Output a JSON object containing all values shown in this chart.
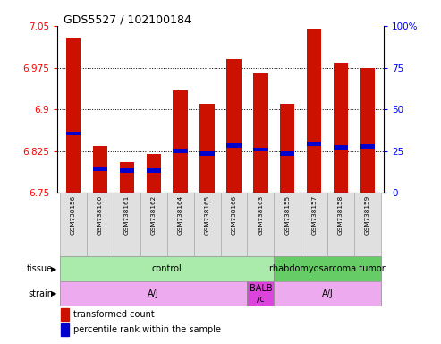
{
  "title": "GDS5527 / 102100184",
  "samples": [
    "GSM738156",
    "GSM738160",
    "GSM738161",
    "GSM738162",
    "GSM738164",
    "GSM738165",
    "GSM738166",
    "GSM738163",
    "GSM738155",
    "GSM738157",
    "GSM738158",
    "GSM738159"
  ],
  "bar_tops": [
    7.03,
    6.835,
    6.805,
    6.82,
    6.935,
    6.91,
    6.99,
    6.965,
    6.91,
    7.045,
    6.985,
    6.975
  ],
  "bar_base": 6.75,
  "blue_marker_pos": [
    6.857,
    6.794,
    6.79,
    6.79,
    6.826,
    6.82,
    6.836,
    6.828,
    6.82,
    6.838,
    6.832,
    6.833
  ],
  "ylim": [
    6.75,
    7.05
  ],
  "yticks": [
    6.75,
    6.825,
    6.9,
    6.975,
    7.05
  ],
  "right_yticks": [
    0,
    25,
    50,
    75,
    100
  ],
  "bar_color": "#cc1100",
  "blue_color": "#0000cc",
  "tissue_groups": [
    {
      "label": "control",
      "start": 0,
      "end": 8,
      "color": "#aaeaaa"
    },
    {
      "label": "rhabdomyosarcoma tumor",
      "start": 8,
      "end": 12,
      "color": "#66cc66"
    }
  ],
  "strain_groups": [
    {
      "label": "A/J",
      "start": 0,
      "end": 7,
      "color": "#eeaaee"
    },
    {
      "label": "BALB\n/c",
      "start": 7,
      "end": 8,
      "color": "#dd44dd"
    },
    {
      "label": "A/J",
      "start": 8,
      "end": 12,
      "color": "#eeaaee"
    }
  ],
  "legend_red": "transformed count",
  "legend_blue": "percentile rank within the sample"
}
